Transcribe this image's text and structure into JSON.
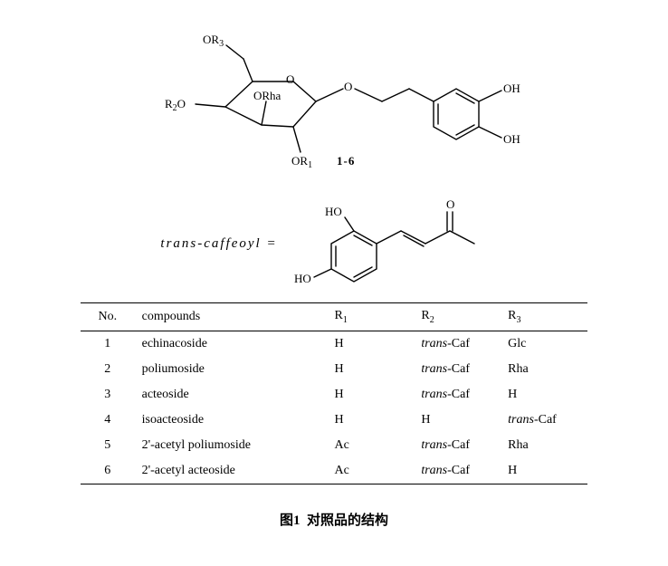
{
  "figure": {
    "caption_prefix": "图1",
    "caption_text": "对照品的结构",
    "compound_range_label": "1-6"
  },
  "scaffold": {
    "labels": {
      "R1": "OR",
      "R1_sub": "1",
      "R2": "R",
      "R2_sub": "2",
      "R2_prefix": "O",
      "R3": "R",
      "R3_sub": "3",
      "R3_prefix": "O",
      "ORha": "ORha",
      "OH_top": "OH",
      "OH_bottom": "OH",
      "anomeric_O": "O",
      "ring_O": "O"
    },
    "stroke": "#000000",
    "stroke_width": 1.4
  },
  "caffeoyl": {
    "label": "trans-caffeoyl =",
    "HO_top": "HO",
    "HO_bottom": "HO",
    "carbonyl_O": "O",
    "stroke": "#000000",
    "stroke_width": 1.4
  },
  "table": {
    "headers": {
      "no": "No.",
      "compounds": "compounds",
      "r1_main": "R",
      "r1_sub": "1",
      "r2_main": "R",
      "r2_sub": "2",
      "r3_main": "R",
      "r3_sub": "3"
    },
    "rows": [
      {
        "no": "1",
        "compound": "echinacoside",
        "r1": "H",
        "r2_trans": true,
        "r2": "-Caf",
        "r3_trans": false,
        "r3": "Glc"
      },
      {
        "no": "2",
        "compound": "poliumoside",
        "r1": "H",
        "r2_trans": true,
        "r2": "-Caf",
        "r3_trans": false,
        "r3": "Rha"
      },
      {
        "no": "3",
        "compound": "acteoside",
        "r1": "H",
        "r2_trans": true,
        "r2": "-Caf",
        "r3_trans": false,
        "r3": "H"
      },
      {
        "no": "4",
        "compound": "isoacteoside",
        "r1": "H",
        "r2_trans": false,
        "r2": "H",
        "r3_trans": true,
        "r3": "-Caf"
      },
      {
        "no": "5",
        "compound": "2'-acetyl poliumoside",
        "r1": "Ac",
        "r2_trans": true,
        "r2": "-Caf",
        "r3_trans": false,
        "r3": "Rha"
      },
      {
        "no": "6",
        "compound": "2'-acetyl acteoside",
        "r1": "Ac",
        "r2_trans": true,
        "r2": "-Caf",
        "r3_trans": false,
        "r3": "H"
      }
    ]
  },
  "style": {
    "background": "#ffffff",
    "text_color": "#000000",
    "rule_color": "#000000",
    "font_family": "Times New Roman",
    "base_fontsize_pt": 14,
    "sub_fontsize_pt": 10,
    "caption_fontsize_pt": 15,
    "caption_weight": "bold"
  }
}
